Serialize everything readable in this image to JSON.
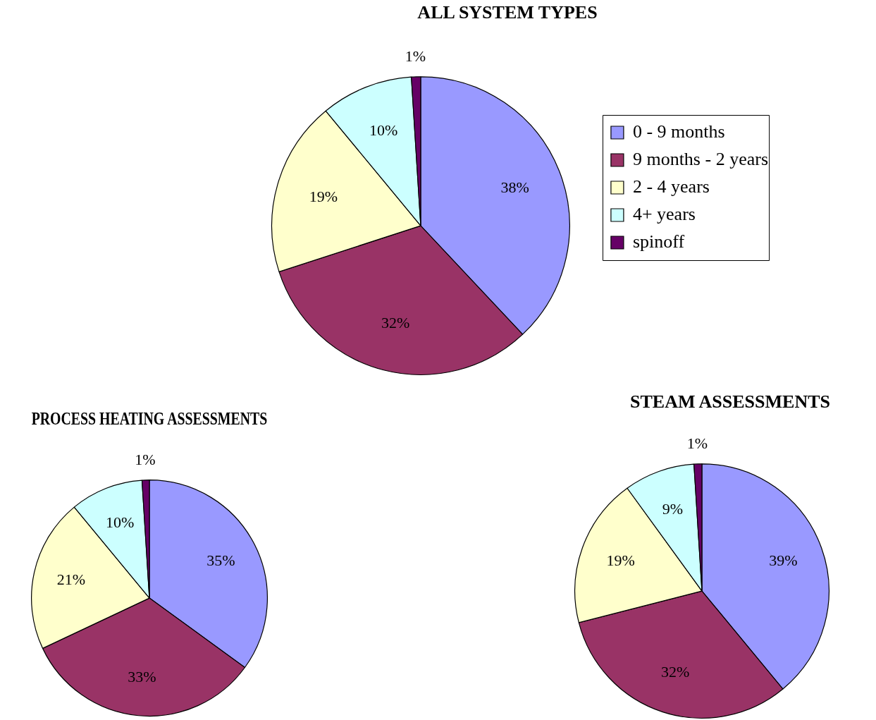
{
  "chart_data": [
    {
      "type": "pie",
      "title": "ALL SYSTEM TYPES",
      "categories": [
        "0 - 9 months",
        "9 months - 2 years",
        "2 - 4 years",
        "4+ years",
        "spinoff"
      ],
      "values": [
        38,
        32,
        19,
        10,
        1
      ],
      "colors": [
        "#9999ff",
        "#993366",
        "#ffffcc",
        "#ccffff",
        "#660066"
      ],
      "value_labels": [
        "38%",
        "32%",
        "19%",
        "10%",
        "1%"
      ],
      "legend": "right"
    },
    {
      "type": "pie",
      "title": "PROCESS HEATING ASSESSMENTS",
      "categories": [
        null,
        null,
        null,
        null,
        null
      ],
      "values": [
        35,
        33,
        21,
        10,
        1
      ],
      "colors": [
        "#9999ff",
        "#993366",
        "#ffffcc",
        "#ccffff",
        "#660066"
      ],
      "value_labels": [
        "35%",
        "33%",
        "21%",
        "10%",
        "1%"
      ]
    },
    {
      "type": "pie",
      "title": "STEAM ASSESSMENTS",
      "categories": [
        null,
        null,
        null,
        null,
        null
      ],
      "values": [
        39,
        32,
        19,
        9,
        1
      ],
      "colors": [
        "#9999ff",
        "#993366",
        "#ffffcc",
        "#ccffff",
        "#660066"
      ],
      "value_labels": [
        "39%",
        "32%",
        "19%",
        "9%",
        "1%"
      ]
    }
  ]
}
